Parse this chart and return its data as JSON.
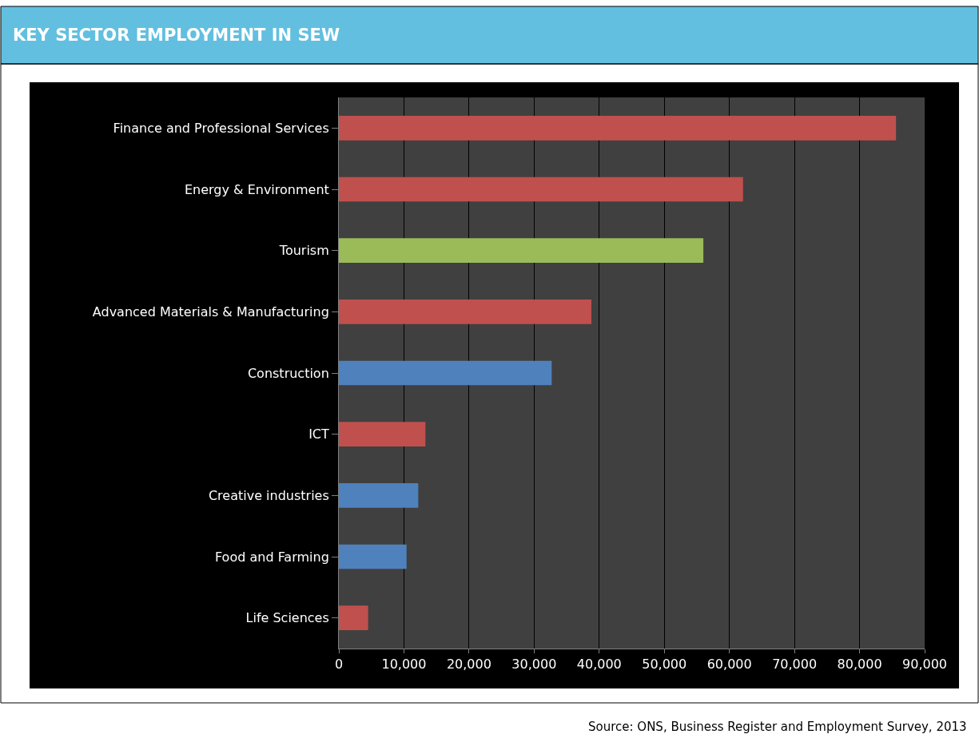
{
  "chart_data": {
    "type": "bar",
    "orientation": "horizontal",
    "title": "KEY SECTOR EMPLOYMENT IN SEW",
    "categories": [
      "Finance and Professional Services",
      "Energy & Environment",
      "Tourism",
      "Advanced Materials & Manufacturing",
      "Construction",
      "ICT",
      "Creative industries",
      "Food and Farming",
      "Life Sciences"
    ],
    "values": [
      85600,
      62100,
      56000,
      38800,
      32700,
      13300,
      12200,
      10400,
      4500
    ],
    "colors": [
      "#c0504d",
      "#c0504d",
      "#9bbb59",
      "#c0504d",
      "#4f81bd",
      "#c0504d",
      "#4f81bd",
      "#4f81bd",
      "#c0504d"
    ],
    "xlim": [
      0,
      90000
    ],
    "xticks": [
      0,
      {
        "value": 10000,
        "label": "10,000"
      },
      {
        "value": 20000,
        "label": "20,000"
      },
      {
        "value": 30000,
        "label": "30,000"
      },
      {
        "value": 40000,
        "label": "40,000"
      },
      {
        "value": 50000,
        "label": "50,000"
      },
      {
        "value": 60000,
        "label": "60,000"
      },
      {
        "value": 70000,
        "label": "70,000"
      },
      {
        "value": 80000,
        "label": "80,000"
      },
      {
        "value": 90000,
        "label": "90,000"
      }
    ],
    "grid": "x",
    "annotations": [
      "Source: ONS, Business Register and Employment Survey, 2013"
    ]
  }
}
